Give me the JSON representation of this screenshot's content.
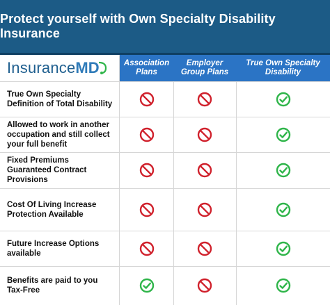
{
  "title": "Protect yourself with Own Specialty Disability Insurance",
  "logo": {
    "text": "Insurance",
    "suffix": "MD"
  },
  "columns": [
    {
      "label": "Association\nPlans"
    },
    {
      "label": "Employer\nGroup Plans"
    },
    {
      "label": "True Own Specialty\nDisability"
    }
  ],
  "colors": {
    "banner": "#1c5b86",
    "header": "#2b74c5",
    "no": "#d0212c",
    "yes": "#2fb54a"
  },
  "rows": [
    {
      "feature": "True Own Specialty\nDefinition of Total Disability",
      "values": [
        "no",
        "no",
        "yes"
      ]
    },
    {
      "feature": "Allowed to work in another\noccupation and still collect\nyour full benefit",
      "values": [
        "no",
        "no",
        "yes"
      ]
    },
    {
      "feature": "Fixed Premiums\nGuaranteed Contract\nProvisions",
      "values": [
        "no",
        "no",
        "yes"
      ]
    },
    {
      "feature": "Cost Of Living Increase\nProtection Available",
      "values": [
        "no",
        "no",
        "yes"
      ]
    },
    {
      "feature": "Future Increase Options\navailable",
      "values": [
        "no",
        "no",
        "yes"
      ]
    },
    {
      "feature": "Benefits are paid to you\nTax-Free",
      "values": [
        "yes",
        "no",
        "yes"
      ]
    }
  ]
}
